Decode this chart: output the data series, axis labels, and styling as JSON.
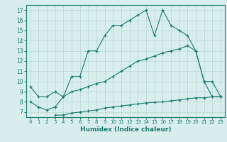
{
  "line1_x": [
    0,
    1,
    2,
    3,
    4,
    5,
    6,
    7,
    8,
    9,
    10,
    11,
    12,
    13,
    14,
    15,
    16,
    17,
    18,
    19,
    20,
    21,
    22,
    23
  ],
  "line1_y": [
    9.5,
    8.5,
    8.5,
    9.0,
    8.5,
    10.5,
    10.5,
    13.0,
    13.0,
    14.5,
    15.5,
    15.5,
    16.0,
    16.5,
    17.0,
    14.5,
    17.0,
    15.5,
    15.0,
    14.5,
    13.0,
    10.0,
    10.0,
    8.5
  ],
  "line2_x": [
    0,
    1,
    2,
    3,
    4,
    5,
    6,
    7,
    8,
    9,
    10,
    11,
    12,
    13,
    14,
    15,
    16,
    17,
    18,
    19,
    20,
    21,
    22,
    23
  ],
  "line2_y": [
    8.0,
    7.5,
    7.2,
    7.5,
    8.5,
    9.0,
    9.2,
    9.5,
    9.8,
    10.0,
    10.5,
    11.0,
    11.5,
    12.0,
    12.2,
    12.5,
    12.8,
    13.0,
    13.2,
    13.5,
    13.0,
    10.0,
    8.5,
    8.5
  ],
  "line3_x": [
    3,
    4,
    5,
    6,
    7,
    8,
    9,
    10,
    11,
    12,
    13,
    14,
    15,
    16,
    17,
    18,
    19,
    20,
    21,
    22,
    23
  ],
  "line3_y": [
    6.7,
    6.7,
    6.9,
    7.0,
    7.1,
    7.2,
    7.4,
    7.5,
    7.6,
    7.7,
    7.8,
    7.9,
    7.95,
    8.0,
    8.1,
    8.2,
    8.3,
    8.4,
    8.4,
    8.5,
    8.5
  ],
  "line_color": "#1a7a6e",
  "bg_color": "#d8eeec",
  "grid_color": "#b8d8d4",
  "xlabel": "Humidex (Indice chaleur)",
  "xlim": [
    -0.5,
    23.5
  ],
  "ylim": [
    6.5,
    17.5
  ],
  "xticks": [
    0,
    1,
    2,
    3,
    4,
    5,
    6,
    7,
    8,
    9,
    10,
    11,
    12,
    13,
    14,
    15,
    16,
    17,
    18,
    19,
    20,
    21,
    22,
    23
  ],
  "yticks": [
    7,
    8,
    9,
    10,
    11,
    12,
    13,
    14,
    15,
    16,
    17
  ]
}
